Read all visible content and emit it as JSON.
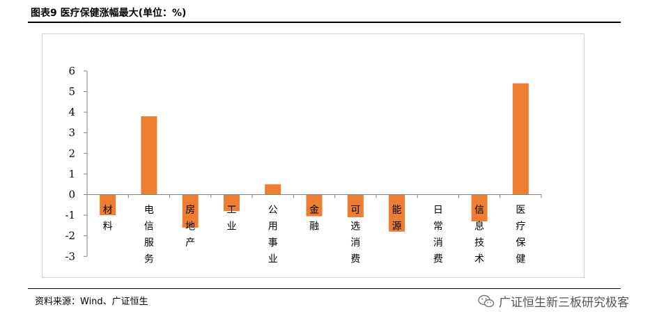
{
  "title": "图表9 医疗保健涨幅最大(单位：%)",
  "source": "资料来源：Wind、广证恒生",
  "watermark": "广证恒生新三板研究极客",
  "colors": {
    "bar": "#ED7D31",
    "axis": "#808080"
  },
  "chart_data": {
    "type": "bar",
    "categories": [
      "材料",
      "电信服务",
      "房地产",
      "工业",
      "公用事业",
      "金融",
      "可选消费",
      "能源",
      "日常消费",
      "信息技术",
      "医疗保健"
    ],
    "values": [
      -1.0,
      3.8,
      -1.6,
      -0.8,
      0.5,
      -1.05,
      -1.1,
      -1.8,
      0.0,
      -1.3,
      5.4
    ],
    "ylim": [
      -3,
      6
    ],
    "yticks": [
      6,
      5,
      4,
      3,
      2,
      1,
      0,
      -1,
      -2,
      -3
    ],
    "title": "",
    "xlabel": "",
    "ylabel": "",
    "legend": "none",
    "grid": false
  }
}
